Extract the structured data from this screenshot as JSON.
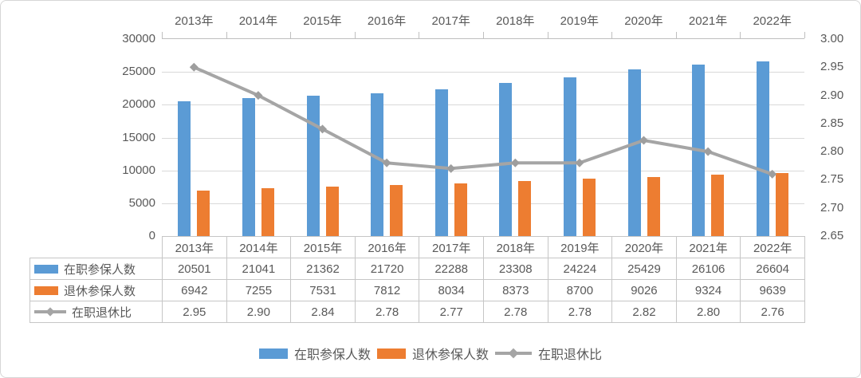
{
  "colors": {
    "bar_blue": "#5B9BD5",
    "bar_orange": "#ED7D31",
    "line_gray": "#A5A5A5",
    "marker_gray": "#9E9E9E",
    "gridline": "#D9D9D9",
    "axis_line": "#BFBFBF",
    "text_gray": "#595959",
    "table_border": "#C6C6C6"
  },
  "chart_data": {
    "type": "combo",
    "title": "",
    "categories": [
      "2013年",
      "2014年",
      "2015年",
      "2016年",
      "2017年",
      "2018年",
      "2019年",
      "2020年",
      "2021年",
      "2022年"
    ],
    "series": [
      {
        "name": "在职参保人数",
        "type": "bar",
        "color": "#5B9BD5",
        "axis": "left",
        "decimals": 0,
        "values": [
          20501,
          21041,
          21362,
          21720,
          22288,
          23308,
          24224,
          25429,
          26106,
          26604
        ]
      },
      {
        "name": "退休参保人数",
        "type": "bar",
        "color": "#ED7D31",
        "axis": "left",
        "decimals": 0,
        "values": [
          6942,
          7255,
          7531,
          7812,
          8034,
          8373,
          8700,
          9026,
          9324,
          9639
        ]
      },
      {
        "name": "在职退休比",
        "type": "line",
        "color": "#A5A5A5",
        "axis": "right",
        "decimals": 2,
        "values": [
          2.95,
          2.9,
          2.84,
          2.78,
          2.77,
          2.78,
          2.78,
          2.82,
          2.8,
          2.76
        ]
      }
    ],
    "left_axis": {
      "min": 0,
      "max": 30000,
      "step": 5000,
      "ticks": [
        "30000",
        "25000",
        "20000",
        "15000",
        "10000",
        "5000",
        "0"
      ]
    },
    "right_axis": {
      "min": 2.65,
      "max": 3.0,
      "step": 0.05,
      "ticks": [
        "3.00",
        "2.95",
        "2.90",
        "2.85",
        "2.80",
        "2.75",
        "2.70",
        "2.65"
      ]
    },
    "grid": true,
    "category_axis_position": "top",
    "legend_position": "bottom",
    "data_table_shown": true
  }
}
